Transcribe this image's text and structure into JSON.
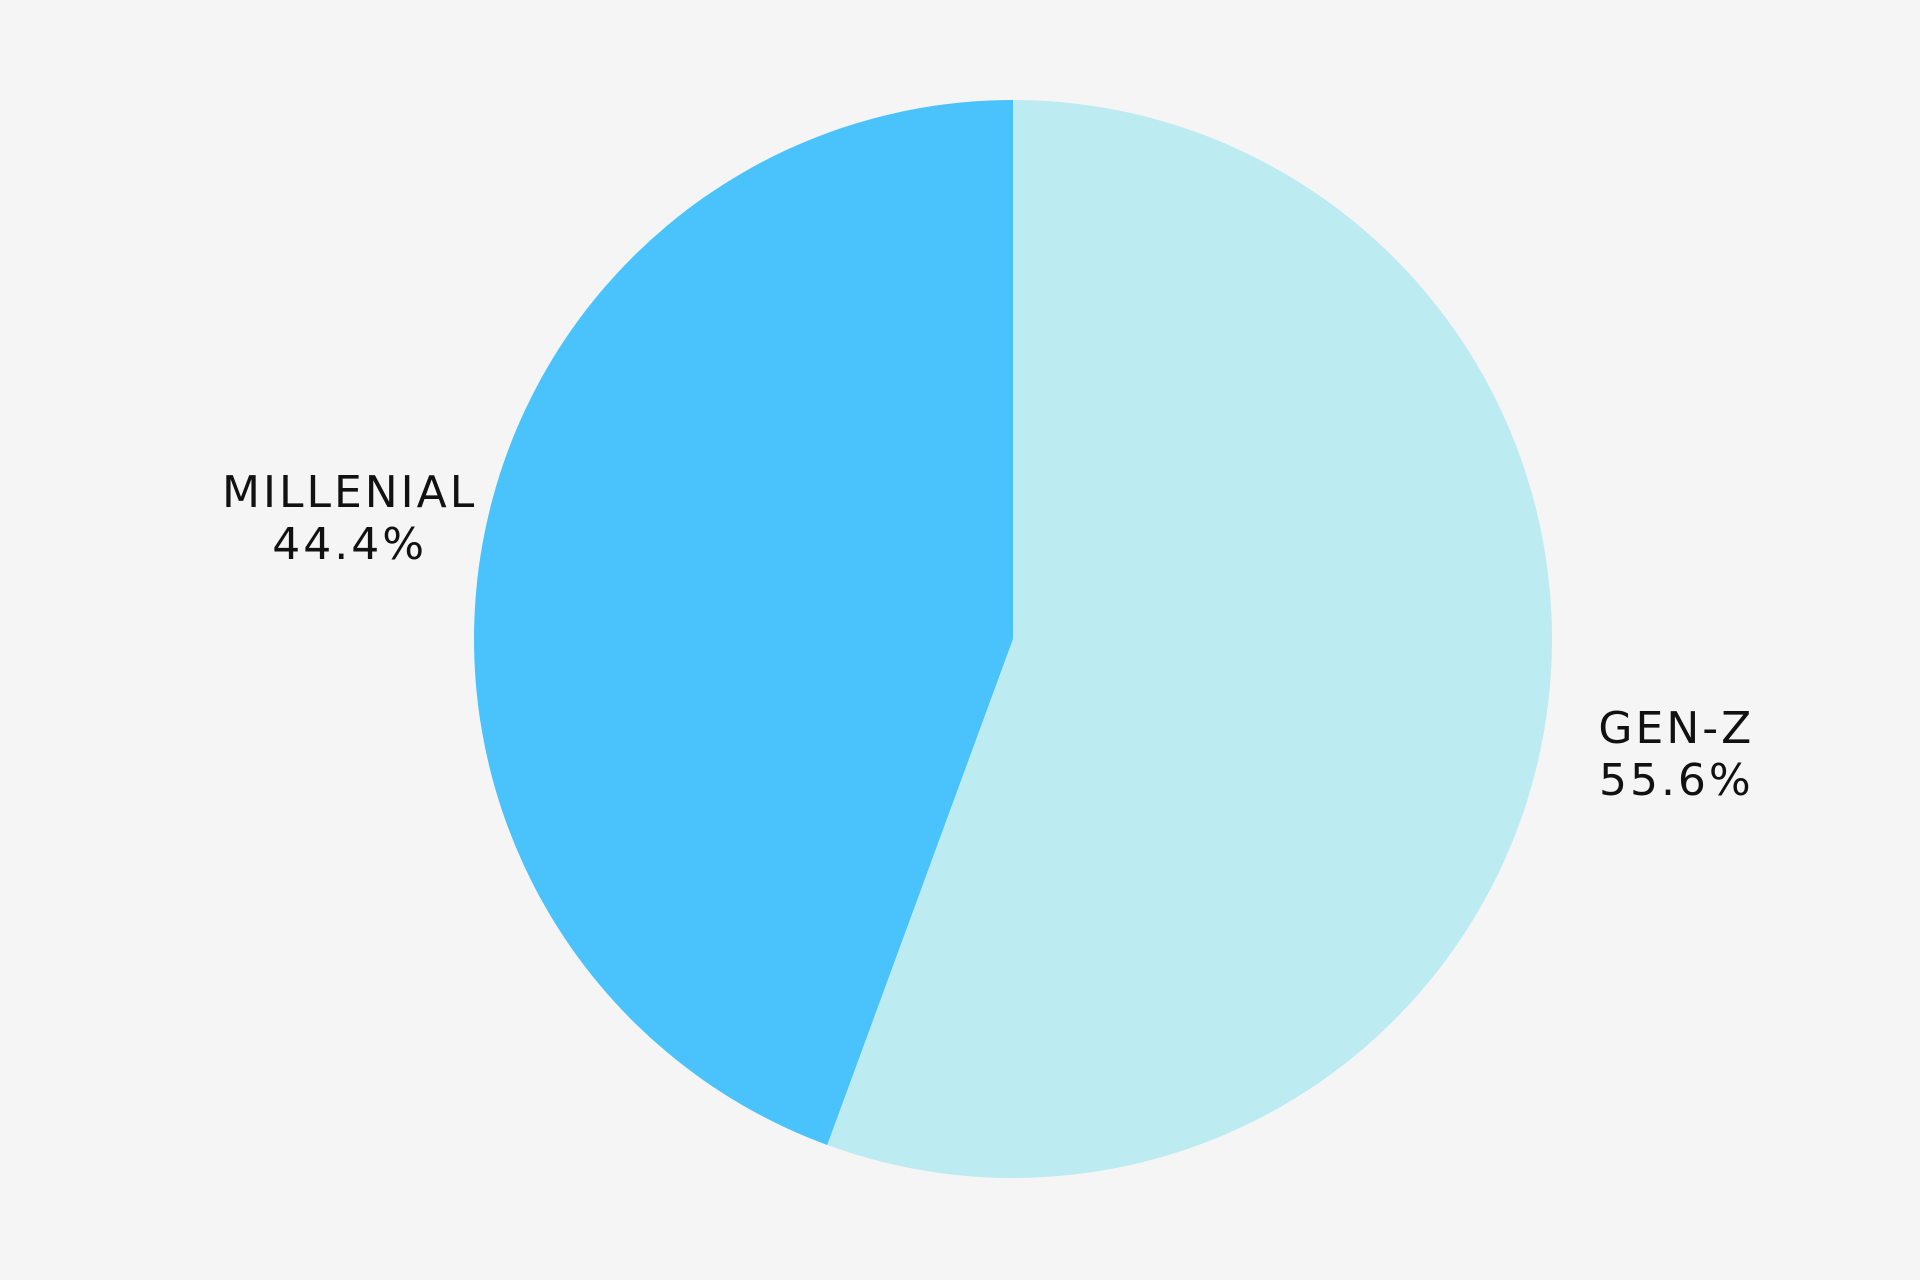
{
  "chart_data": {
    "type": "pie",
    "categories": [
      "GEN-Z",
      "MILLENIAL"
    ],
    "values": [
      55.6,
      44.4
    ],
    "value_labels": [
      "55.6%",
      "44.4%"
    ],
    "colors": [
      "#bdebf2",
      "#4ac3fd"
    ]
  }
}
